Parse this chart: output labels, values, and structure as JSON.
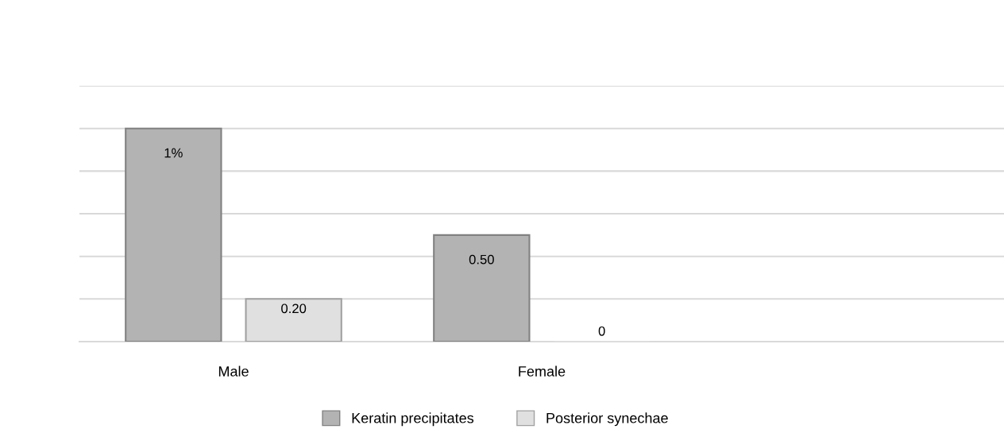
{
  "chart_data": {
    "type": "bar",
    "categories": [
      "Male",
      "Female",
      null
    ],
    "series": [
      {
        "name": "Keratin precipitates",
        "color": "#b3b3b3",
        "values": [
          1,
          0.5,
          null
        ],
        "value_labels": [
          "1%",
          "0.50",
          null
        ]
      },
      {
        "name": "Posterior synechae",
        "color": "#e0e0e0",
        "values": [
          0.2,
          0,
          null
        ],
        "value_labels": [
          "0.20",
          "0",
          null
        ]
      }
    ],
    "ylim": [
      0,
      1.2
    ],
    "yticks": [
      {
        "value": 0,
        "label": null
      },
      {
        "value": 0.2,
        "label": null
      },
      {
        "value": 0.4,
        "label": null
      },
      {
        "value": 0.6,
        "label": null
      },
      {
        "value": 0.8,
        "label": null
      },
      {
        "value": 1.0,
        "label": null
      },
      {
        "value": 1.2,
        "label": null
      }
    ],
    "grid": "y",
    "legend": "bottom"
  }
}
